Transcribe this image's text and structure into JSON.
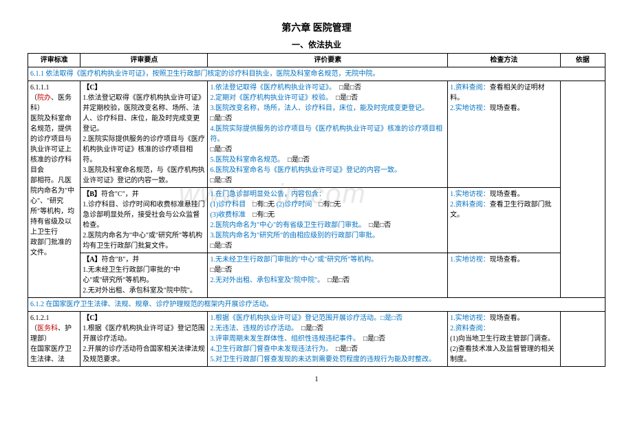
{
  "title": "第六章 医院管理",
  "subtitle": "一、依法执业",
  "watermark": "www....in.com",
  "headers": [
    "评审标准",
    "评审要点",
    "评价要素",
    "检查方法",
    "依据"
  ],
  "section_611": "6.1.1 依法取得《医疗机构执业许可证》，按照卫生行政部门核定的诊疗科目执业，医院及科室命名规范，无院中院。",
  "row1": {
    "std_lines": [
      {
        "t": "6.1.1.1"
      },
      {
        "t": "（",
        "suffix_red": "院办",
        "t2": "、医务科）"
      },
      {
        "t": "医院及科室命名规范，提供的诊疗项目与执业许可证上核准的诊疗科目会"
      }
    ],
    "key": [
      {
        "b": "【C】"
      },
      {
        "t": "1.依法登记取得《医疗机构执业许可证》并定期校验，医院改变名称、场所、法人、诊疗科目、床位，能及时完成变更登记。"
      },
      {
        "t": "2.医院实际提供服务的诊疗项目与《医疗机构执业许可证》核准的诊疗项目相符。"
      },
      {
        "t": "3.医院及科室命名规范，与《医疗机构执业许可证》登记的内容一致。"
      }
    ],
    "eval": [
      {
        "blue": "1.依法登记取得《医疗机构执业许可证》。",
        "box": "□是□否"
      },
      {
        "blue": "2.定期对《医疗机构执业许可证》校验。",
        "box": "□是□否"
      },
      {
        "blue": "3.医院改变名称，场所，法人、诊疗科目，床位，能及时完成变更登记。"
      },
      {
        "box_only": "□是□否"
      },
      {
        "blue": "4.医院实际提供服务的诊疗项目与《医疗机构执业许可证》核准的诊疗项目相符。"
      },
      {
        "box_only": "□是□否"
      },
      {
        "blue": "5.医院及科室命名规范。",
        "box": "□是□否"
      },
      {
        "blue": "6.医院及科室命名与《医疗机构执业许可证》登记的内容一致。"
      },
      {
        "box_only": "□是□否"
      }
    ],
    "method": [
      {
        "b_blue": "1.资料查阅：",
        "t": "查看相关的证明材料。"
      },
      {
        "b_blue": "2.实地访视：",
        "t": "现场查看。"
      }
    ]
  },
  "row2": {
    "std": "部相符。凡医院内命名为\"中心\"、\"研究所\"等机构，均持有省级及以上卫生行",
    "key": [
      {
        "b": "【B】",
        "t": "符合\"C\"，并"
      },
      {
        "t": "1.诊疗科目、诊疗时间和收费标准悬挂门急诊部明显处所，接受社会与公众监督检查。"
      },
      {
        "t": "2.医院内命名为\"中心\"或\"研究所\"等机构均有卫生行政部门批复文件。"
      }
    ],
    "eval": [
      {
        "blue": "1.在门急诊部明显处公告，内容包含："
      },
      {
        "blue": "(1)诊疗科目",
        "box": "□有□无",
        "blue2": "  (2)诊疗时间",
        "box2": "□有□无"
      },
      {
        "blue": "(3)收费标准",
        "box": "□有□无"
      },
      {
        "blue": "2.医院内命名为\"中心\"的有省级卫生行政部门审批。",
        "box": "□是□否"
      },
      {
        "blue": "3.医院内命名为\"研究所\"的由相应级别的行政部门审批。"
      },
      {
        "box_only": "□是□否"
      }
    ],
    "method": [
      {
        "b_blue": "1.实地访视：",
        "t": "现场查看。"
      },
      {
        "b_blue": "2.资料查阅：",
        "t": "查看卫生行政部门批文。"
      }
    ]
  },
  "row3": {
    "std": "政部门批准的文件。",
    "key": [
      {
        "b": "【A】",
        "t": "符合\"B\"，并"
      },
      {
        "t": "1.无未经卫生行政部门审批的\"中心\"或\"研究所\"等机构。"
      },
      {
        "t": "2.无对外出租、承包科室及\"院中院\"。"
      }
    ],
    "eval": [
      {
        "blue": "1.无未经卫生行政部门审批的\"中心\"或\"研究所\"等机构。"
      },
      {
        "box_only": "□是□否"
      },
      {
        "blue": "2.无对外出租、承包科室及\"院中院\"。",
        "box": "□是□否"
      }
    ],
    "method": [
      {
        "b_blue": "1.实地访视：",
        "t": "现场查看。"
      }
    ]
  },
  "section_612": "6.1.2 在国家医疗卫生法律、法规、规章、诊疗护理规范的框架内开展诊疗活动。",
  "row4": {
    "std_lines": [
      {
        "t": "6.1.2.1"
      },
      {
        "t": "（",
        "suffix_red": "医务科",
        "t2": "、护理部）"
      },
      {
        "t": "在国家医疗卫生法律、法"
      }
    ],
    "key": [
      {
        "b": "【C】"
      },
      {
        "t": "1.根据《医疗机构执业许可证》登记范围开展诊疗活动。"
      },
      {
        "t": "2.开展的诊疗活动符合国家相关法律法规及规范要求。"
      }
    ],
    "eval": [
      {
        "blue": "1.根据《医疗机构执业许可证》登记范围开展诊疗活动。□是□否"
      },
      {
        "blue": "2.无违法、违规的诊疗活动。",
        "box": "□是□否"
      },
      {
        "blue": "3.评审周期未发生群体性、组织性违规违纪事件。",
        "box": "□是□否"
      },
      {
        "blue": "4.卫生行政部门督查中未发现违法行为。",
        "box": "□是□否"
      },
      {
        "blue": "5.对卫生行政部门督查发现的未达到需要处罚程度的违规行为能及时整改。"
      }
    ],
    "method": [
      {
        "b_blue": "1.实地访视：",
        "t": "现场查看。"
      },
      {
        "b_blue": "2.资料查阅："
      },
      {
        "t": "(1)向当地卫生行政主管部门调查。"
      },
      {
        "t": "(2)查看技术准入及监督管理的相关制度。"
      }
    ]
  },
  "page": "1"
}
